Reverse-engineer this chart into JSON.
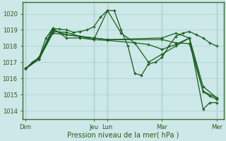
{
  "background_color": "#cce8e8",
  "grid_color": "#b0d8d8",
  "line_color": "#1a5c1a",
  "xlabel": "Pression niveau de la mer( hPa )",
  "ylim": [
    1013.5,
    1020.7
  ],
  "yticks": [
    1014,
    1015,
    1016,
    1017,
    1018,
    1019,
    1020
  ],
  "day_labels": [
    "Dim",
    "Jeu",
    "Lun",
    "Mar",
    "Mer"
  ],
  "day_positions": [
    0,
    5,
    6,
    10,
    14
  ],
  "vline_positions": [
    0,
    5,
    6,
    10,
    14
  ],
  "xlim": [
    -0.2,
    14.5
  ],
  "lines": [
    {
      "x": [
        0,
        0.5,
        1,
        1.5,
        2,
        2.5,
        3,
        3.5,
        4,
        4.5,
        5,
        5.5,
        6,
        6.5,
        7,
        7.5,
        8,
        8.5,
        9,
        9.5,
        10,
        10.5,
        11,
        11.5,
        12,
        12.5,
        13,
        13.5,
        14
      ],
      "y": [
        1016.6,
        1017.0,
        1017.3,
        1018.5,
        1019.1,
        1019.05,
        1019.0,
        1018.85,
        1018.9,
        1019.0,
        1019.2,
        1019.8,
        1020.2,
        1020.2,
        1019.0,
        1018.0,
        1016.3,
        1016.2,
        1016.9,
        1017.0,
        1017.3,
        1018.0,
        1018.6,
        1018.8,
        1018.9,
        1018.7,
        1018.5,
        1018.2,
        1018.0
      ]
    },
    {
      "x": [
        0,
        1,
        2,
        3,
        4,
        5,
        6,
        7,
        8,
        9,
        10,
        11,
        12,
        13,
        14
      ],
      "y": [
        1016.6,
        1017.3,
        1019.1,
        1018.5,
        1018.5,
        1018.4,
        1020.2,
        1018.8,
        1018.2,
        1017.0,
        1017.5,
        1018.0,
        1018.5,
        1015.5,
        1014.8
      ]
    },
    {
      "x": [
        0,
        1,
        2,
        3,
        4,
        5,
        6,
        8,
        9,
        10,
        11,
        12,
        13,
        14
      ],
      "y": [
        1016.6,
        1017.2,
        1019.0,
        1018.7,
        1018.6,
        1018.4,
        1018.35,
        1018.2,
        1018.1,
        1017.8,
        1018.1,
        1018.5,
        1015.2,
        1014.8
      ]
    },
    {
      "x": [
        0,
        1,
        2,
        3,
        4,
        5,
        6,
        10,
        11,
        12,
        13,
        13.5,
        14
      ],
      "y": [
        1016.6,
        1017.2,
        1018.9,
        1018.85,
        1018.6,
        1018.5,
        1018.4,
        1018.5,
        1018.8,
        1018.5,
        1014.1,
        1014.5,
        1014.5
      ]
    },
    {
      "x": [
        0,
        1,
        2,
        3,
        4,
        5,
        6,
        10,
        11,
        12,
        13,
        13.5,
        14
      ],
      "y": [
        1016.6,
        1017.2,
        1018.8,
        1018.7,
        1018.6,
        1018.5,
        1018.4,
        1018.4,
        1018.2,
        1018.15,
        1015.2,
        1014.9,
        1014.7
      ]
    }
  ]
}
